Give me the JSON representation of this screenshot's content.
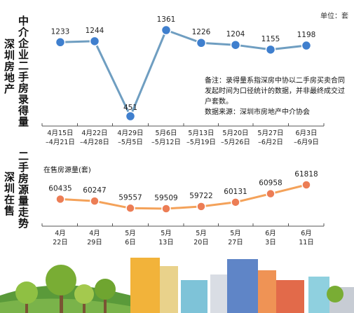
{
  "top_title_left": "深圳房地产",
  "top_title_right": "中介企业二手房录得量",
  "bottom_title_left": "深圳在售",
  "bottom_title_right": "二手房源量走势",
  "unit_label": "单位：套",
  "note": "备注：录得量系指深房中协以二手房买卖合同发起时间为口径统计的数据，并非最终成交过户套数。\n数据来源：深圳市房地产中介协会",
  "chart_data": [
    {
      "type": "line",
      "title": "中介企业二手房录得量",
      "unit": "套",
      "categories": [
        "4月15日—4月21日",
        "4月22日—4月28日",
        "4月29日—5月5日",
        "5月6日—5月12日",
        "5月13日—5月19日",
        "5月20日—5月26日",
        "5月27日—6月2日",
        "6月3日—6月9日"
      ],
      "x_labels": [
        [
          "4月15日",
          "–4月21日"
        ],
        [
          "4月22日",
          "–4月28日"
        ],
        [
          "4月29日",
          "–5月5日"
        ],
        [
          "5月6日",
          "–5月12日"
        ],
        [
          "5月13日",
          "–5月19日"
        ],
        [
          "5月20日",
          "–5月26日"
        ],
        [
          "5月27日",
          "–6月2日"
        ],
        [
          "6月3日",
          "–6月9日"
        ]
      ],
      "values": [
        1233,
        1244,
        451,
        1361,
        1226,
        1204,
        1155,
        1198
      ],
      "color": "#6f9ec1",
      "marker_color": "#3f7fce",
      "grid": false
    },
    {
      "type": "line",
      "title": "深圳在售二手房源量走势",
      "subtitle": "在售房源量(套)",
      "categories": [
        "4月22日",
        "4月29日",
        "5月6日",
        "5月13日",
        "5月20日",
        "5月27日",
        "6月3日",
        "6月11日"
      ],
      "x_labels": [
        [
          "4月",
          "22日"
        ],
        [
          "4月",
          "29日"
        ],
        [
          "5月",
          "6日"
        ],
        [
          "5月",
          "13日"
        ],
        [
          "5月",
          "20日"
        ],
        [
          "5月",
          "27日"
        ],
        [
          "6月",
          "3日"
        ],
        [
          "6月",
          "11日"
        ]
      ],
      "values": [
        60435,
        60247,
        59557,
        59509,
        59722,
        60131,
        60958,
        61818
      ],
      "color": "#f4a25a",
      "marker_color": "#ec7d55",
      "grid": false
    }
  ]
}
